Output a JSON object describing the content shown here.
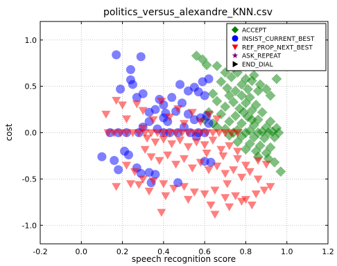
{
  "chart_data": {
    "type": "scatter",
    "title": "politics_versus_alexandre_KNN.csv",
    "xlabel": "speech recognition score",
    "ylabel": "cost",
    "xlim": [
      -0.2,
      1.2
    ],
    "ylim": [
      -1.2,
      1.2
    ],
    "x_ticks": [
      "-0.2",
      "0.0",
      "0.2",
      "0.4",
      "0.6",
      "0.8",
      "1.0",
      "1.2"
    ],
    "y_ticks": [
      "-1.0",
      "-0.5",
      "0.0",
      "0.5",
      "1.0"
    ],
    "grid": true,
    "legend_position": "top-right",
    "series": [
      {
        "name": "ACCEPT",
        "marker": "diamond",
        "color": "#008000",
        "points": [
          [
            0.56,
            0.83
          ],
          [
            0.59,
            0.79
          ],
          [
            0.61,
            0.73
          ],
          [
            0.66,
            0.72
          ],
          [
            0.74,
            0.7
          ],
          [
            0.7,
            0.65
          ],
          [
            0.76,
            0.65
          ],
          [
            0.84,
            0.62
          ],
          [
            0.95,
            0.58
          ],
          [
            0.73,
            0.6
          ],
          [
            0.8,
            0.58
          ],
          [
            0.68,
            0.55
          ],
          [
            0.83,
            0.56
          ],
          [
            0.87,
            0.52
          ],
          [
            0.78,
            0.52
          ],
          [
            0.71,
            0.48
          ],
          [
            0.75,
            0.45
          ],
          [
            0.81,
            0.47
          ],
          [
            0.86,
            0.45
          ],
          [
            0.9,
            0.47
          ],
          [
            0.64,
            0.42
          ],
          [
            0.72,
            0.4
          ],
          [
            0.78,
            0.4
          ],
          [
            0.82,
            0.38
          ],
          [
            0.92,
            0.4
          ],
          [
            0.66,
            0.34
          ],
          [
            0.74,
            0.33
          ],
          [
            0.8,
            0.32
          ],
          [
            0.85,
            0.3
          ],
          [
            0.7,
            0.28
          ],
          [
            0.77,
            0.26
          ],
          [
            0.83,
            0.24
          ],
          [
            0.88,
            0.22
          ],
          [
            0.62,
            0.22
          ],
          [
            0.68,
            0.2
          ],
          [
            0.75,
            0.18
          ],
          [
            0.81,
            0.17
          ],
          [
            0.86,
            0.14
          ],
          [
            0.92,
            0.12
          ],
          [
            0.72,
            0.12
          ],
          [
            0.78,
            0.1
          ],
          [
            0.84,
            0.08
          ],
          [
            0.9,
            0.06
          ],
          [
            0.95,
            0.05
          ],
          [
            0.7,
            0.04
          ],
          [
            0.76,
            0.03
          ],
          [
            0.82,
            0.02
          ],
          [
            0.88,
            0.01
          ],
          [
            0.93,
            0.01
          ],
          [
            0.74,
            0.0
          ],
          [
            0.8,
            0.0
          ],
          [
            0.86,
            0.0
          ],
          [
            0.91,
            0.0
          ],
          [
            0.96,
            0.0
          ],
          [
            0.72,
            -0.03
          ],
          [
            0.78,
            -0.04
          ],
          [
            0.84,
            -0.05
          ],
          [
            0.89,
            -0.06
          ],
          [
            0.94,
            -0.05
          ],
          [
            0.76,
            -0.1
          ],
          [
            0.82,
            -0.12
          ],
          [
            0.87,
            -0.14
          ],
          [
            0.92,
            -0.16
          ],
          [
            0.8,
            -0.18
          ],
          [
            0.85,
            -0.2
          ],
          [
            0.9,
            -0.22
          ],
          [
            0.86,
            -0.26
          ],
          [
            0.91,
            -0.28
          ],
          [
            0.94,
            -0.32
          ],
          [
            0.97,
            -0.42
          ],
          [
            0.64,
            0.1
          ],
          [
            0.6,
            0.14
          ],
          [
            0.66,
            0.06
          ],
          [
            0.83,
            0.14
          ],
          [
            0.79,
            0.22
          ]
        ]
      },
      {
        "name": "INSIST_CURRENT_BEST",
        "marker": "circle",
        "color": "#0000ff",
        "points": [
          [
            0.17,
            0.84
          ],
          [
            0.29,
            0.82
          ],
          [
            0.24,
            0.68
          ],
          [
            0.24,
            0.57
          ],
          [
            0.25,
            0.52
          ],
          [
            0.19,
            0.47
          ],
          [
            0.62,
            0.58
          ],
          [
            0.59,
            0.55
          ],
          [
            0.48,
            0.52
          ],
          [
            0.55,
            0.49
          ],
          [
            0.52,
            0.45
          ],
          [
            0.57,
            0.44
          ],
          [
            0.6,
            0.4
          ],
          [
            0.3,
            0.42
          ],
          [
            0.27,
            0.38
          ],
          [
            0.44,
            0.38
          ],
          [
            0.49,
            0.32
          ],
          [
            0.38,
            0.36
          ],
          [
            0.4,
            0.3
          ],
          [
            0.36,
            0.25
          ],
          [
            0.33,
            0.22
          ],
          [
            0.41,
            0.21
          ],
          [
            0.4,
            0.16
          ],
          [
            0.46,
            0.23
          ],
          [
            0.52,
            0.2
          ],
          [
            0.55,
            0.14
          ],
          [
            0.58,
            0.16
          ],
          [
            0.61,
            0.18
          ],
          [
            0.62,
            0.1
          ],
          [
            0.33,
            0.12
          ],
          [
            0.3,
            0.06
          ],
          [
            0.37,
            0.04
          ],
          [
            0.4,
            0.0
          ],
          [
            0.43,
            0.0
          ],
          [
            0.47,
            0.0
          ],
          [
            0.53,
            0.0
          ],
          [
            0.57,
            0.0
          ],
          [
            0.6,
            0.0
          ],
          [
            0.28,
            0.0
          ],
          [
            0.22,
            0.0
          ],
          [
            0.14,
            0.0
          ],
          [
            0.18,
            0.0
          ],
          [
            0.21,
            -0.2
          ],
          [
            0.23,
            -0.24
          ],
          [
            0.16,
            -0.3
          ],
          [
            0.18,
            -0.4
          ],
          [
            0.1,
            -0.26
          ],
          [
            0.27,
            -0.38
          ],
          [
            0.29,
            -0.44
          ],
          [
            0.33,
            -0.43
          ],
          [
            0.36,
            -0.45
          ],
          [
            0.34,
            -0.54
          ],
          [
            0.47,
            -0.54
          ],
          [
            0.56,
            -0.04
          ],
          [
            0.6,
            -0.31
          ],
          [
            0.63,
            -0.32
          ],
          [
            0.42,
            0.12
          ],
          [
            0.5,
            0.06
          ]
        ]
      },
      {
        "name": "REF_PROP_NEXT_BEST",
        "marker": "triangle-down",
        "color": "#ff0000",
        "points": [
          [
            0.17,
            0.35
          ],
          [
            0.2,
            0.3
          ],
          [
            0.27,
            0.31
          ],
          [
            0.12,
            0.2
          ],
          [
            0.22,
            0.15
          ],
          [
            0.3,
            0.24
          ],
          [
            0.35,
            0.14
          ],
          [
            0.39,
            0.34
          ],
          [
            0.43,
            0.17
          ],
          [
            0.47,
            0.26
          ],
          [
            0.5,
            0.1
          ],
          [
            0.54,
            0.22
          ],
          [
            0.58,
            0.12
          ],
          [
            0.62,
            0.2
          ],
          [
            0.66,
            0.15
          ],
          [
            0.13,
            0.0
          ],
          [
            0.16,
            0.0
          ],
          [
            0.19,
            0.0
          ],
          [
            0.22,
            0.0
          ],
          [
            0.25,
            0.0
          ],
          [
            0.28,
            0.0
          ],
          [
            0.31,
            0.0
          ],
          [
            0.34,
            0.0
          ],
          [
            0.37,
            0.0
          ],
          [
            0.4,
            0.0
          ],
          [
            0.43,
            0.0
          ],
          [
            0.46,
            0.0
          ],
          [
            0.49,
            0.0
          ],
          [
            0.52,
            0.0
          ],
          [
            0.55,
            0.0
          ],
          [
            0.58,
            0.0
          ],
          [
            0.61,
            0.0
          ],
          [
            0.64,
            0.0
          ],
          [
            0.67,
            0.0
          ],
          [
            0.7,
            0.0
          ],
          [
            0.73,
            0.0
          ],
          [
            0.76,
            0.0
          ],
          [
            0.3,
            0.05
          ],
          [
            0.32,
            -0.06
          ],
          [
            0.36,
            -0.1
          ],
          [
            0.4,
            -0.07
          ],
          [
            0.44,
            -0.12
          ],
          [
            0.48,
            -0.08
          ],
          [
            0.52,
            -0.15
          ],
          [
            0.56,
            -0.1
          ],
          [
            0.6,
            -0.13
          ],
          [
            0.64,
            -0.08
          ],
          [
            0.68,
            -0.18
          ],
          [
            0.72,
            -0.14
          ],
          [
            0.76,
            -0.2
          ],
          [
            0.31,
            -0.18
          ],
          [
            0.34,
            -0.26
          ],
          [
            0.38,
            -0.3
          ],
          [
            0.42,
            -0.24
          ],
          [
            0.46,
            -0.34
          ],
          [
            0.5,
            -0.28
          ],
          [
            0.54,
            -0.38
          ],
          [
            0.58,
            -0.32
          ],
          [
            0.62,
            -0.4
          ],
          [
            0.66,
            -0.36
          ],
          [
            0.7,
            -0.44
          ],
          [
            0.74,
            -0.4
          ],
          [
            0.78,
            -0.48
          ],
          [
            0.82,
            -0.42
          ],
          [
            0.86,
            -0.5
          ],
          [
            0.22,
            -0.35
          ],
          [
            0.26,
            -0.42
          ],
          [
            0.3,
            -0.5
          ],
          [
            0.24,
            -0.55
          ],
          [
            0.17,
            -0.58
          ],
          [
            0.28,
            -0.56
          ],
          [
            0.35,
            -0.52
          ],
          [
            0.4,
            -0.55
          ],
          [
            0.45,
            -0.6
          ],
          [
            0.5,
            -0.58
          ],
          [
            0.55,
            -0.64
          ],
          [
            0.6,
            -0.66
          ],
          [
            0.65,
            -0.62
          ],
          [
            0.7,
            -0.7
          ],
          [
            0.75,
            -0.68
          ],
          [
            0.8,
            -0.72
          ],
          [
            0.85,
            -0.66
          ],
          [
            0.89,
            -0.62
          ],
          [
            0.92,
            -0.58
          ],
          [
            0.33,
            -0.63
          ],
          [
            0.41,
            -0.68
          ],
          [
            0.52,
            -0.72
          ],
          [
            0.63,
            -0.78
          ],
          [
            0.72,
            -0.8
          ],
          [
            0.78,
            -0.74
          ],
          [
            0.39,
            -0.86
          ],
          [
            0.65,
            -0.88
          ],
          [
            0.83,
            -0.78
          ],
          [
            0.71,
            -0.55
          ],
          [
            0.8,
            -0.35
          ],
          [
            0.86,
            -0.3
          ],
          [
            0.9,
            -0.34
          ],
          [
            0.76,
            -0.28
          ],
          [
            0.69,
            -0.25
          ],
          [
            0.61,
            -0.22
          ]
        ]
      },
      {
        "name": "ASK_REPEAT",
        "marker": "star",
        "color": "#800080",
        "points": []
      },
      {
        "name": "END_DIAL",
        "marker": "triangle-right",
        "color": "#000000",
        "points": []
      }
    ]
  }
}
